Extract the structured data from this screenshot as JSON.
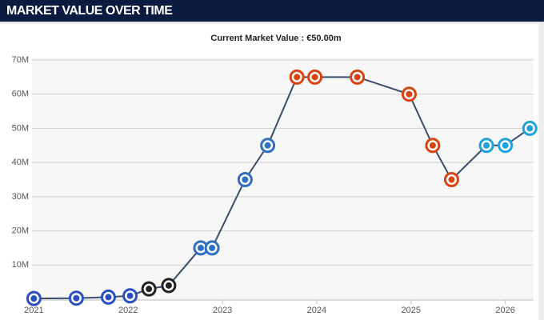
{
  "header": {
    "title": "MARKET VALUE OVER TIME"
  },
  "chart_data": {
    "type": "line",
    "subtitle": "Current Market Value : €50.00m",
    "x": [
      2021.0,
      2021.45,
      2021.79,
      2022.02,
      2022.22,
      2022.43,
      2022.77,
      2022.89,
      2023.24,
      2023.48,
      2023.79,
      2023.98,
      2024.43,
      2024.98,
      2025.23,
      2025.43,
      2025.8,
      2026.0,
      2026.26
    ],
    "values": [
      0.2,
      0.3,
      0.6,
      1,
      3,
      4,
      15,
      15,
      35,
      45,
      65,
      65,
      65,
      60,
      45,
      35,
      45,
      45,
      50
    ],
    "point_colors": [
      "#2a4fc0",
      "#2a4fc0",
      "#2a4fc0",
      "#2a4fc0",
      "#222222",
      "#222222",
      "#2f6fc4",
      "#2f6fc4",
      "#2f6fc4",
      "#2f6fc4",
      "#d8430f",
      "#d8430f",
      "#d8430f",
      "#d8430f",
      "#d8430f",
      "#d8430f",
      "#1ea3dc",
      "#1ea3dc",
      "#1ea3dc"
    ],
    "color": "#3a4e6c",
    "xlim": [
      2020.98,
      2026.3
    ],
    "xticks": [
      2021,
      2022,
      2023,
      2024,
      2025,
      2026
    ],
    "ylim": [
      0,
      70
    ],
    "yticks": [
      {
        "value": 10,
        "label": "10M"
      },
      {
        "value": 20,
        "label": "20M"
      },
      {
        "value": 30,
        "label": "30M"
      },
      {
        "value": 40,
        "label": "40M"
      },
      {
        "value": 50,
        "label": "50M"
      },
      {
        "value": 60,
        "label": "60M"
      },
      {
        "value": 70,
        "label": "70M"
      }
    ],
    "grid": true
  }
}
